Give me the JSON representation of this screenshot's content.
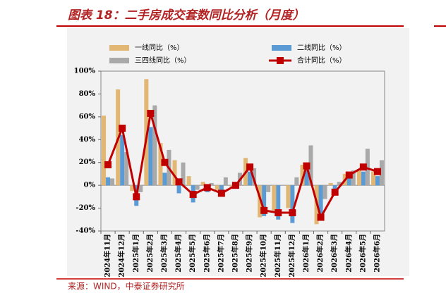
{
  "chart_data": {
    "type": "bar-line",
    "title": "图表 18：二手房成交套数同比分析（月度）",
    "source": "来源：WIND，中泰证券研究所",
    "categories": [
      "2024年11月",
      "2024年12月",
      "2025年1月",
      "2025年2月",
      "2025年3月",
      "2025年4月",
      "2025年5月",
      "2025年6月",
      "2025年7月",
      "2025年8月",
      "2025年9月",
      "2025年10月",
      "2025年11月",
      "2025年12月",
      "2026年1月",
      "2026年2月",
      "2026年3月",
      "2026年4月",
      "2026年5月",
      "2026年6月"
    ],
    "series": [
      {
        "name": "一线同比（%）",
        "color": "#e2b774",
        "type": "bar",
        "values": [
          61,
          84,
          -5,
          93,
          37,
          22,
          8,
          3,
          -4,
          -1,
          24,
          -28,
          -22,
          -20,
          18,
          -34,
          2,
          10,
          14,
          12
        ]
      },
      {
        "name": "二线同比（%）",
        "color": "#5b9bd5",
        "type": "bar",
        "values": [
          7,
          44,
          -18,
          51,
          11,
          -7,
          -15,
          -6,
          -10,
          -3,
          12,
          -27,
          -30,
          -33,
          16,
          -30,
          -8,
          6,
          12,
          8
        ]
      },
      {
        "name": "三四线同比（%）",
        "color": "#a9a9a9",
        "type": "bar",
        "values": [
          6,
          29,
          -6,
          70,
          31,
          20,
          -4,
          2,
          7,
          11,
          15,
          -6,
          0,
          7,
          35,
          -12,
          3,
          13,
          32,
          22
        ]
      },
      {
        "name": "合计同比（%）",
        "color": "#c00000",
        "type": "line",
        "values": [
          18,
          50,
          -10,
          63,
          20,
          3,
          -8,
          -2,
          -7,
          0,
          16,
          -22,
          -24,
          -24,
          17,
          -28,
          -6,
          9,
          16,
          12
        ]
      }
    ],
    "ylim": [
      -40,
      100
    ],
    "yticks": [
      {
        "value": -40,
        "label": "-40%"
      },
      {
        "value": -20,
        "label": "-20%"
      },
      {
        "value": 0,
        "label": "0%"
      },
      {
        "value": 20,
        "label": "20%"
      },
      {
        "value": 40,
        "label": "40%"
      },
      {
        "value": 60,
        "label": "60%"
      },
      {
        "value": 80,
        "label": "80%"
      },
      {
        "value": 100,
        "label": "100%"
      }
    ]
  }
}
